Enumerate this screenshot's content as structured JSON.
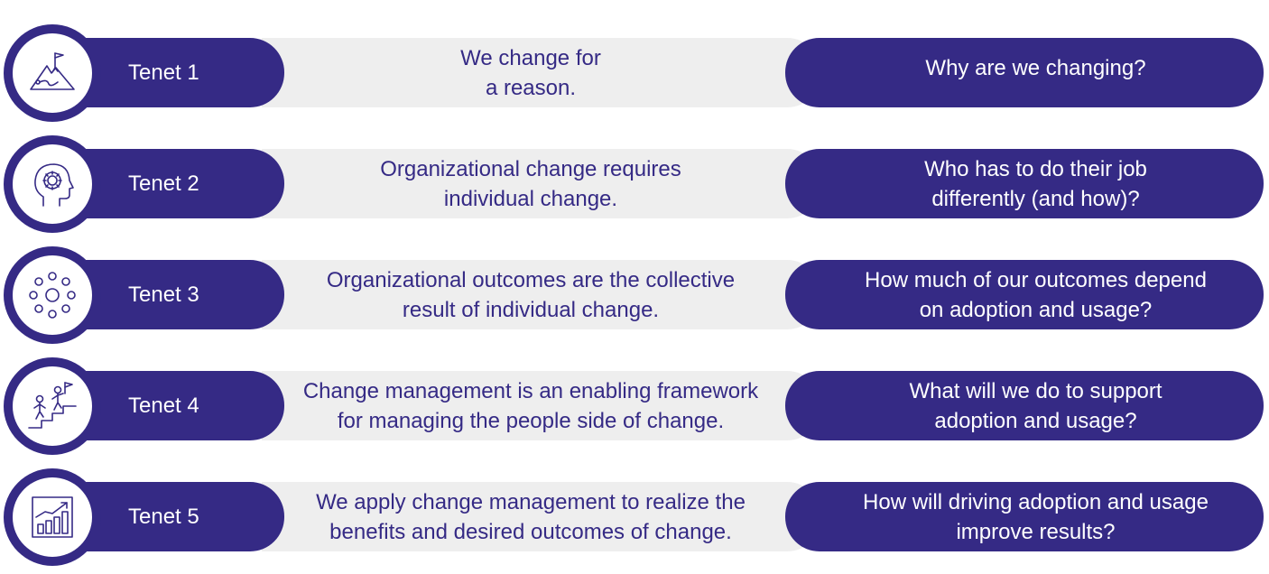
{
  "tenets": [
    {
      "label": "Tenet 1",
      "icon": "mountain-flag-icon",
      "statement": "We change for\na reason.",
      "question": "Why are we changing?"
    },
    {
      "label": "Tenet 2",
      "icon": "head-gear-icon",
      "statement": "Organizational change requires\nindividual change.",
      "question": "Who has to do their job\ndifferently (and how)?"
    },
    {
      "label": "Tenet 3",
      "icon": "dots-circle-icon",
      "statement": "Organizational outcomes are the collective\nresult of individual change.",
      "question": "How much of our outcomes depend\non adoption and usage?"
    },
    {
      "label": "Tenet 4",
      "icon": "people-climbing-stairs-icon",
      "statement": "Change management is an enabling framework\nfor managing the people side of change.",
      "question": "What will we do to support\nadoption and usage?"
    },
    {
      "label": "Tenet 5",
      "icon": "growth-bar-chart-icon",
      "statement": "We apply change management to realize the\nbenefits and desired outcomes of change.",
      "question": "How will driving adoption and usage\nimprove results?"
    }
  ],
  "colors": {
    "primary": "#352a85",
    "band": "#eeeeee",
    "background": "#ffffff"
  }
}
